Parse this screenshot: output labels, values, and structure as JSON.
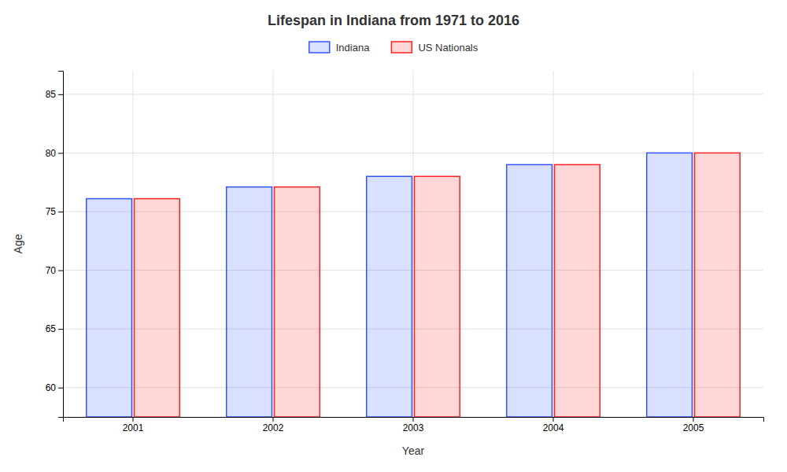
{
  "chart_data": {
    "type": "bar",
    "title": "Lifespan in Indiana from 1971 to 2016",
    "x_label": "Year",
    "y_label": "Age",
    "categories": [
      "2001",
      "2002",
      "2003",
      "2004",
      "2005"
    ],
    "series": [
      {
        "name": "Indiana",
        "color": "#3355ff",
        "values": [
          76.1,
          77.1,
          78.0,
          79.0,
          80.0
        ]
      },
      {
        "name": "US Nationals",
        "color": "#ff2222",
        "values": [
          76.1,
          77.1,
          78.0,
          79.0,
          80.0
        ]
      }
    ],
    "ylim": [
      57.5,
      87
    ],
    "yticks": [
      60,
      65,
      70,
      75,
      80,
      85
    ],
    "grid": true,
    "legend": "top"
  }
}
